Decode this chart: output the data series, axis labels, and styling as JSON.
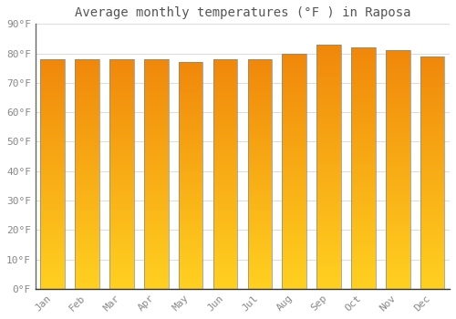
{
  "title": "Average monthly temperatures (°F ) in Raposa",
  "months": [
    "Jan",
    "Feb",
    "Mar",
    "Apr",
    "May",
    "Jun",
    "Jul",
    "Aug",
    "Sep",
    "Oct",
    "Nov",
    "Dec"
  ],
  "values": [
    78,
    78,
    78,
    78,
    77,
    78,
    78,
    80,
    83,
    82,
    81,
    79
  ],
  "bar_color_bottom": "#FFD020",
  "bar_color_top": "#F0870A",
  "bar_edge_color": "#888888",
  "background_color": "#FFFFFF",
  "ylim": [
    0,
    90
  ],
  "yticks": [
    0,
    10,
    20,
    30,
    40,
    50,
    60,
    70,
    80,
    90
  ],
  "grid_color": "#DDDDDD",
  "text_color": "#888888",
  "title_color": "#555555",
  "title_fontsize": 10,
  "tick_fontsize": 8,
  "bar_width": 0.7
}
